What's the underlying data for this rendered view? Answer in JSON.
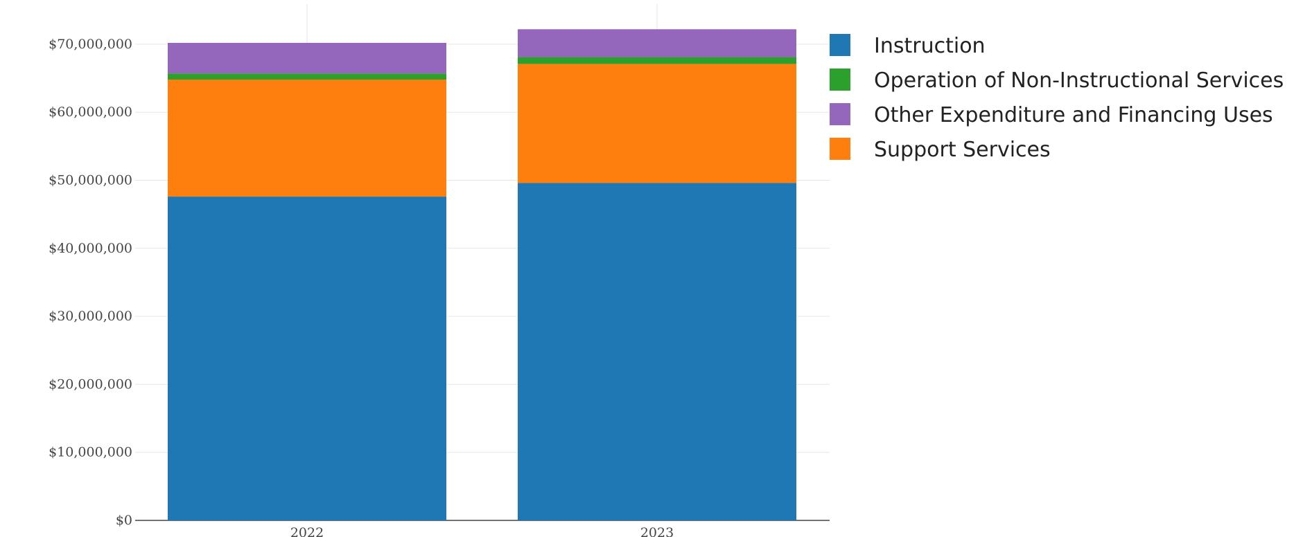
{
  "chart_data": {
    "type": "bar",
    "stacked": true,
    "categories": [
      "2022",
      "2023"
    ],
    "series": [
      {
        "name": "Instruction",
        "color": "#1f77b4",
        "values": [
          47600000,
          49600000
        ]
      },
      {
        "name": "Support Services",
        "color": "#ff7f0e",
        "values": [
          17200000,
          17500000
        ]
      },
      {
        "name": "Operation of Non-Instructional Services",
        "color": "#2ca02c",
        "values": [
          900000,
          1000000
        ]
      },
      {
        "name": "Other Expenditure and Financing Uses",
        "color": "#9467bd",
        "values": [
          4500000,
          4100000
        ]
      }
    ],
    "legend_order": [
      "Instruction",
      "Operation of Non-Instructional Services",
      "Other Expenditure and Financing Uses",
      "Support Services"
    ],
    "y_ticks": [
      0,
      10000000,
      20000000,
      30000000,
      40000000,
      50000000,
      60000000,
      70000000
    ],
    "y_tick_labels": [
      "$0",
      "$10,000,000",
      "$20,000,000",
      "$30,000,000",
      "$40,000,000",
      "$50,000,000",
      "$60,000,000",
      "$70,000,000"
    ],
    "ylim": [
      0,
      76500000
    ],
    "title": "",
    "xlabel": "",
    "ylabel": "",
    "grid": true,
    "legend_position": "right"
  }
}
